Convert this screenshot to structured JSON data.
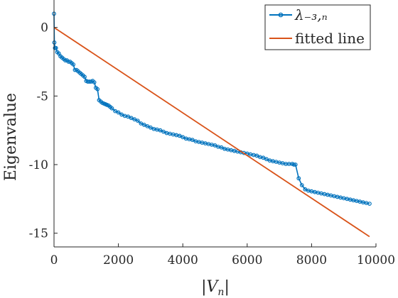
{
  "chart_data": {
    "type": "line",
    "title": "",
    "xlabel": "|V_n|",
    "ylabel": "Eigenvalue",
    "xlim": [
      0,
      10000
    ],
    "ylim": [
      -16,
      2
    ],
    "xticks": [
      0,
      2000,
      4000,
      6000,
      8000,
      10000
    ],
    "xtick_labels": [
      "0",
      "2000",
      "4000",
      "6000",
      "8000",
      "10000"
    ],
    "yticks": [
      0,
      -5,
      -10,
      -15
    ],
    "ytick_labels": [
      "0",
      "-5",
      "-10",
      "-15"
    ],
    "grid": false,
    "legend_position": "top-right",
    "legend_entries": [
      "λ₋₃,ₙ",
      "fitted line"
    ],
    "series": [
      {
        "name": "λ₋₃,ₙ",
        "color": "#0072BD",
        "style": "line-with-markers",
        "x": [
          0,
          10,
          30,
          60,
          100,
          150,
          200,
          250,
          300,
          350,
          400,
          450,
          500,
          550,
          600,
          650,
          700,
          750,
          800,
          850,
          900,
          950,
          1000,
          1050,
          1100,
          1150,
          1200,
          1250,
          1300,
          1350,
          1400,
          1450,
          1500,
          1550,
          1600,
          1650,
          1700,
          1750,
          1800,
          1900,
          2000,
          2100,
          2200,
          2300,
          2400,
          2500,
          2600,
          2700,
          2800,
          2900,
          3000,
          3100,
          3200,
          3300,
          3400,
          3500,
          3600,
          3700,
          3800,
          3900,
          4000,
          4100,
          4200,
          4300,
          4400,
          4500,
          4600,
          4700,
          4800,
          4900,
          5000,
          5100,
          5200,
          5300,
          5400,
          5500,
          5600,
          5700,
          5800,
          5900,
          6000,
          6100,
          6200,
          6300,
          6400,
          6500,
          6600,
          6700,
          6800,
          6900,
          7000,
          7100,
          7200,
          7300,
          7400,
          7450,
          7500,
          7600,
          7700,
          7800,
          7900,
          8000,
          8100,
          8200,
          8300,
          8400,
          8500,
          8600,
          8700,
          8800,
          8900,
          9000,
          9100,
          9200,
          9300,
          9400,
          9500,
          9600,
          9700,
          9800
        ],
        "y": [
          1.0,
          -1.1,
          -1.5,
          -1.5,
          -1.8,
          -1.9,
          -2.1,
          -2.2,
          -2.3,
          -2.4,
          -2.4,
          -2.5,
          -2.5,
          -2.6,
          -2.7,
          -3.1,
          -3.1,
          -3.2,
          -3.3,
          -3.4,
          -3.5,
          -3.6,
          -3.9,
          -3.95,
          -3.95,
          -3.95,
          -3.9,
          -4.0,
          -4.4,
          -4.5,
          -5.3,
          -5.4,
          -5.5,
          -5.55,
          -5.6,
          -5.65,
          -5.7,
          -5.8,
          -5.9,
          -6.1,
          -6.2,
          -6.35,
          -6.45,
          -6.5,
          -6.6,
          -6.7,
          -6.8,
          -7.0,
          -7.1,
          -7.2,
          -7.3,
          -7.4,
          -7.45,
          -7.5,
          -7.6,
          -7.7,
          -7.75,
          -7.8,
          -7.85,
          -7.9,
          -8.0,
          -8.1,
          -8.15,
          -8.2,
          -8.3,
          -8.35,
          -8.4,
          -8.45,
          -8.5,
          -8.55,
          -8.6,
          -8.7,
          -8.75,
          -8.85,
          -8.9,
          -8.95,
          -9.0,
          -9.05,
          -9.1,
          -9.15,
          -9.2,
          -9.25,
          -9.3,
          -9.35,
          -9.45,
          -9.5,
          -9.6,
          -9.7,
          -9.75,
          -9.8,
          -9.85,
          -9.9,
          -9.95,
          -9.95,
          -9.95,
          -10.0,
          -10.0,
          -11.0,
          -11.5,
          -11.8,
          -11.9,
          -11.95,
          -12.0,
          -12.05,
          -12.1,
          -12.15,
          -12.2,
          -12.25,
          -12.3,
          -12.35,
          -12.4,
          -12.45,
          -12.5,
          -12.55,
          -12.6,
          -12.65,
          -12.7,
          -12.75,
          -12.8,
          -12.85
        ]
      },
      {
        "name": "fitted line",
        "color": "#D95319",
        "style": "line",
        "x": [
          0,
          9800
        ],
        "y": [
          0,
          -15.25
        ]
      }
    ]
  }
}
